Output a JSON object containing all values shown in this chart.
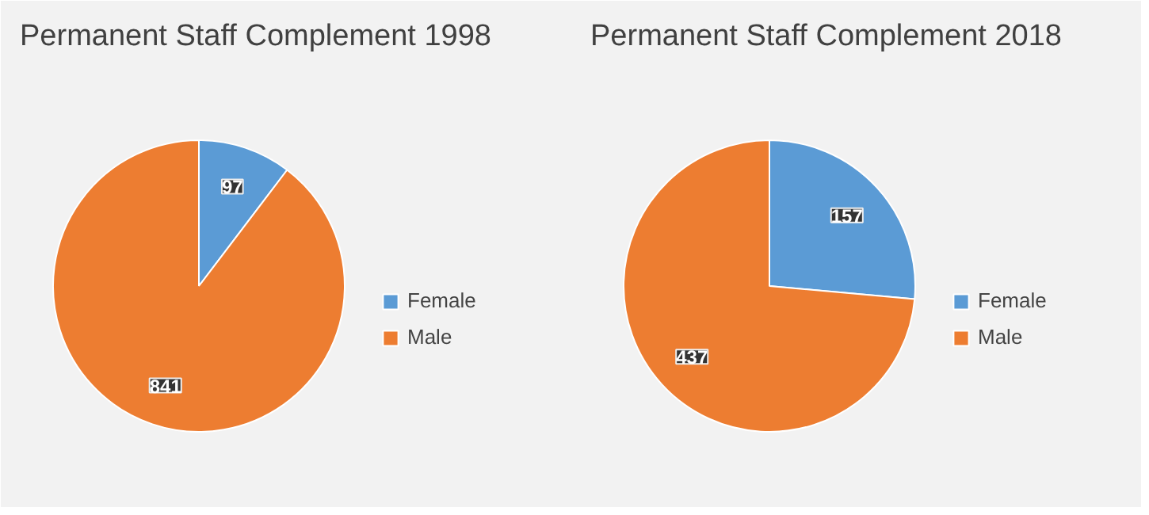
{
  "chart_data": [
    {
      "type": "pie",
      "title": "Permanent Staff Complement 1998",
      "categories": [
        "Female",
        "Male"
      ],
      "values": [
        97,
        841
      ],
      "colors": [
        "#5b9bd5",
        "#ed7d31"
      ],
      "data_labels": true,
      "legend": "right"
    },
    {
      "type": "pie",
      "title": "Permanent Staff Complement 2018",
      "categories": [
        "Female",
        "Male"
      ],
      "values": [
        157,
        437
      ],
      "colors": [
        "#5b9bd5",
        "#ed7d31"
      ],
      "data_labels": true,
      "legend": "right"
    }
  ]
}
